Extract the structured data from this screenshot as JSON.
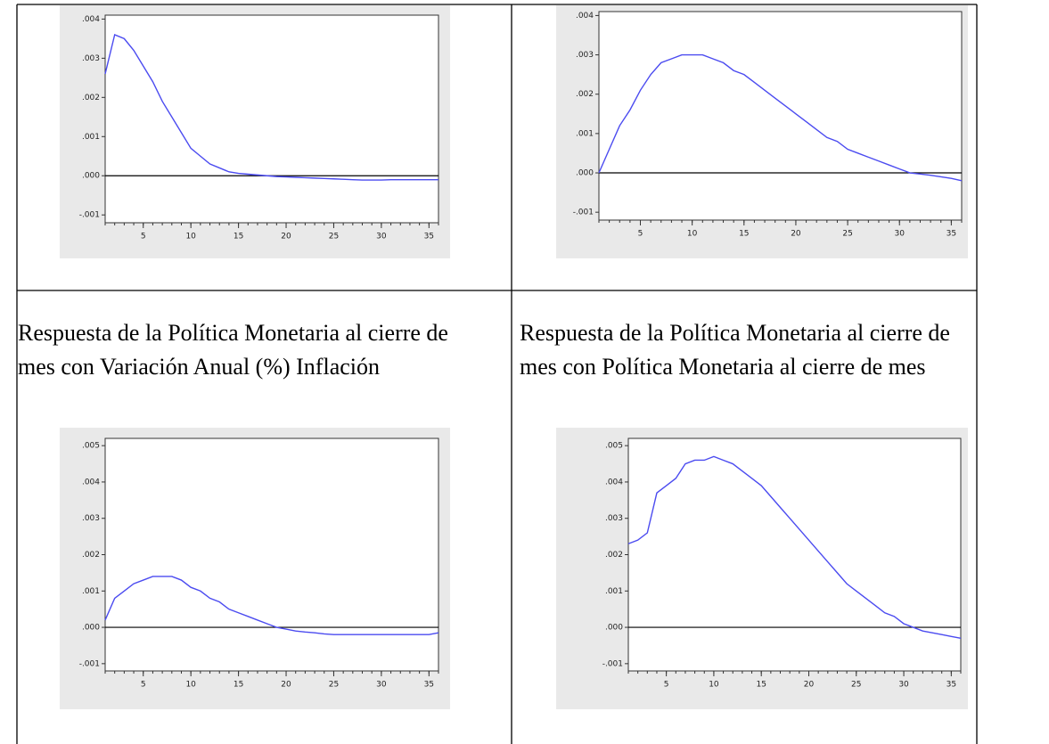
{
  "cells": [
    {
      "chart": {
        "type": "line",
        "color": "#4b4bf0",
        "x": [
          1,
          2,
          3,
          4,
          5,
          6,
          7,
          8,
          9,
          10,
          11,
          12,
          13,
          14,
          15,
          16,
          17,
          18,
          19,
          20,
          21,
          22,
          23,
          24,
          25,
          26,
          27,
          28,
          29,
          30,
          31,
          32,
          33,
          34,
          35,
          36
        ],
        "values": [
          0.0026,
          0.0036,
          0.0035,
          0.0032,
          0.0028,
          0.0024,
          0.0019,
          0.0015,
          0.0011,
          0.0007,
          0.0005,
          0.0003,
          0.0002,
          0.0001,
          6e-05,
          4e-05,
          2e-05,
          0,
          -2e-05,
          -3e-05,
          -4e-05,
          -5e-05,
          -6e-05,
          -7e-05,
          -8e-05,
          -9e-05,
          -0.0001,
          -0.00011,
          -0.00011,
          -0.00011,
          -0.0001,
          -0.0001,
          -0.0001,
          -0.0001,
          -0.0001,
          -0.0001
        ],
        "xlim": [
          1,
          36
        ],
        "xticks": [
          5,
          10,
          15,
          20,
          25,
          30,
          35
        ],
        "ylim": [
          -0.0012,
          0.0041
        ],
        "yticks": [
          {
            "value": -0.001,
            "label": "-.001"
          },
          {
            "value": 0,
            "label": ".000"
          },
          {
            "value": 0.001,
            "label": ".001"
          },
          {
            "value": 0.002,
            "label": ".002"
          },
          {
            "value": 0.003,
            "label": ".003"
          },
          {
            "value": 0.004,
            "label": ".004"
          }
        ]
      }
    },
    {
      "chart": {
        "type": "line",
        "color": "#4b4bf0",
        "x": [
          1,
          2,
          3,
          4,
          5,
          6,
          7,
          8,
          9,
          10,
          11,
          12,
          13,
          14,
          15,
          16,
          17,
          18,
          19,
          20,
          21,
          22,
          23,
          24,
          25,
          26,
          27,
          28,
          29,
          30,
          31,
          32,
          33,
          34,
          35,
          36
        ],
        "values": [
          0,
          0.0006,
          0.0012,
          0.0016,
          0.0021,
          0.0025,
          0.0028,
          0.0029,
          0.003,
          0.003,
          0.003,
          0.0029,
          0.0028,
          0.0026,
          0.0025,
          0.0023,
          0.0021,
          0.0019,
          0.0017,
          0.0015,
          0.0013,
          0.0011,
          0.0009,
          0.0008,
          0.0006,
          0.0005,
          0.0004,
          0.0003,
          0.0002,
          0.0001,
          0,
          -3e-05,
          -6e-05,
          -0.0001,
          -0.00014,
          -0.0002
        ],
        "xlim": [
          1,
          36
        ],
        "xticks": [
          5,
          10,
          15,
          20,
          25,
          30,
          35
        ],
        "ylim": [
          -0.0012,
          0.0041
        ],
        "yticks": [
          {
            "value": -0.001,
            "label": "-.001"
          },
          {
            "value": 0,
            "label": ".000"
          },
          {
            "value": 0.001,
            "label": ".001"
          },
          {
            "value": 0.002,
            "label": ".002"
          },
          {
            "value": 0.003,
            "label": ".003"
          },
          {
            "value": 0.004,
            "label": ".004"
          }
        ]
      }
    },
    {
      "caption": "Respuesta de la Política Monetaria al cierre de mes con Variación Anual (%) Inflación",
      "chart": {
        "type": "line",
        "color": "#4b4bf0",
        "x": [
          1,
          2,
          3,
          4,
          5,
          6,
          7,
          8,
          9,
          10,
          11,
          12,
          13,
          14,
          15,
          16,
          17,
          18,
          19,
          20,
          21,
          22,
          23,
          24,
          25,
          26,
          27,
          28,
          29,
          30,
          31,
          32,
          33,
          34,
          35,
          36
        ],
        "values": [
          0.0002,
          0.0008,
          0.001,
          0.0012,
          0.0013,
          0.0014,
          0.0014,
          0.0014,
          0.0013,
          0.0011,
          0.001,
          0.0008,
          0.0007,
          0.0005,
          0.0004,
          0.0003,
          0.0002,
          0.0001,
          0,
          -5e-05,
          -0.0001,
          -0.00013,
          -0.00015,
          -0.00018,
          -0.0002,
          -0.0002,
          -0.0002,
          -0.0002,
          -0.0002,
          -0.0002,
          -0.0002,
          -0.0002,
          -0.0002,
          -0.0002,
          -0.0002,
          -0.00015
        ],
        "xlim": [
          1,
          36
        ],
        "xticks": [
          5,
          10,
          15,
          20,
          25,
          30,
          35
        ],
        "ylim": [
          -0.0012,
          0.0052
        ],
        "yticks": [
          {
            "value": -0.001,
            "label": "-.001"
          },
          {
            "value": 0,
            "label": ".000"
          },
          {
            "value": 0.001,
            "label": ".001"
          },
          {
            "value": 0.002,
            "label": ".002"
          },
          {
            "value": 0.003,
            "label": ".003"
          },
          {
            "value": 0.004,
            "label": ".004"
          },
          {
            "value": 0.005,
            "label": ".005"
          }
        ]
      }
    },
    {
      "caption": "Respuesta de la Política Monetaria al cierre de mes con Política Monetaria al cierre de mes",
      "chart": {
        "type": "line",
        "color": "#4b4bf0",
        "x": [
          1,
          2,
          3,
          4,
          5,
          6,
          7,
          8,
          9,
          10,
          11,
          12,
          13,
          14,
          15,
          16,
          17,
          18,
          19,
          20,
          21,
          22,
          23,
          24,
          25,
          26,
          27,
          28,
          29,
          30,
          31,
          32,
          33,
          34,
          35,
          36
        ],
        "values": [
          0.0023,
          0.0024,
          0.0026,
          0.0037,
          0.0039,
          0.0041,
          0.0045,
          0.0046,
          0.0046,
          0.0047,
          0.0046,
          0.0045,
          0.0043,
          0.0041,
          0.0039,
          0.0036,
          0.0033,
          0.003,
          0.0027,
          0.0024,
          0.0021,
          0.0018,
          0.0015,
          0.0012,
          0.001,
          0.0008,
          0.0006,
          0.0004,
          0.0003,
          0.0001,
          0,
          -0.0001,
          -0.00015,
          -0.0002,
          -0.00025,
          -0.0003
        ],
        "xlim": [
          1,
          36
        ],
        "xticks": [
          5,
          10,
          15,
          20,
          25,
          30,
          35
        ],
        "ylim": [
          -0.0012,
          0.0052
        ],
        "yticks": [
          {
            "value": -0.001,
            "label": "-.001"
          },
          {
            "value": 0,
            "label": ".000"
          },
          {
            "value": 0.001,
            "label": ".001"
          },
          {
            "value": 0.002,
            "label": ".002"
          },
          {
            "value": 0.003,
            "label": ".003"
          },
          {
            "value": 0.004,
            "label": ".004"
          },
          {
            "value": 0.005,
            "label": ".005"
          }
        ]
      }
    }
  ]
}
